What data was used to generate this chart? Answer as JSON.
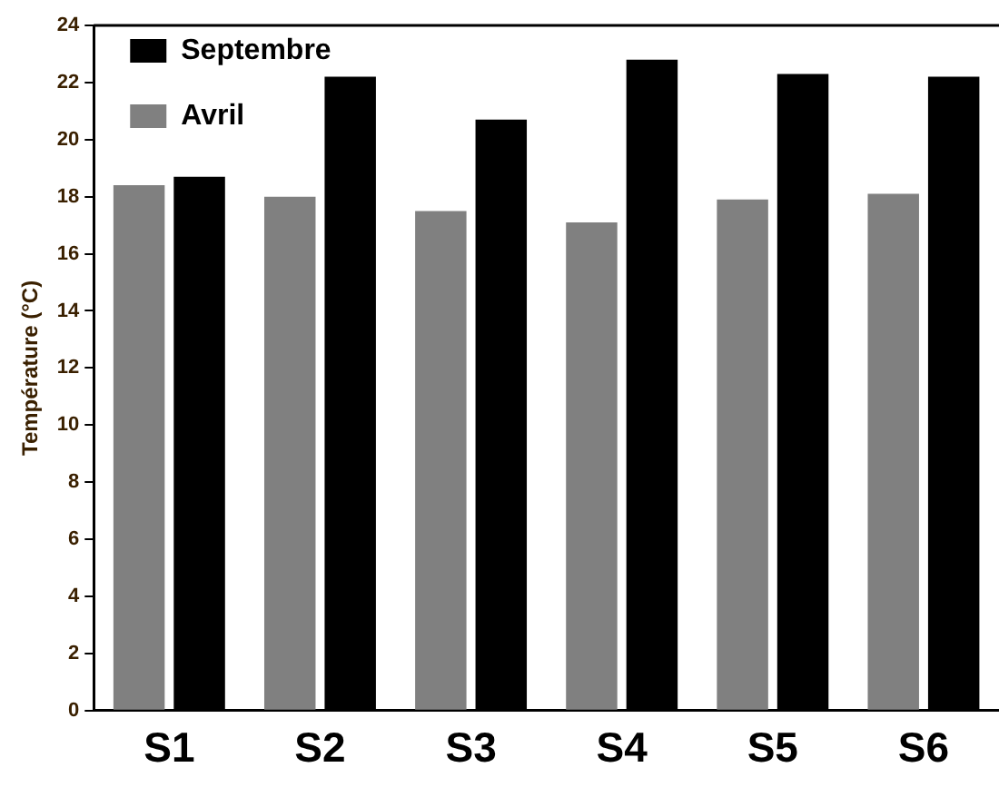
{
  "chart_data": {
    "type": "bar",
    "ylabel": "Température (°C)",
    "categories": [
      "S1",
      "S2",
      "S3",
      "S4",
      "S5",
      "S6"
    ],
    "series": [
      {
        "name": "Avril",
        "color": "#808080",
        "values": [
          18.4,
          18.0,
          17.5,
          17.1,
          17.9,
          18.1
        ]
      },
      {
        "name": "Septembre",
        "color": "#000000",
        "values": [
          18.7,
          22.2,
          20.7,
          22.8,
          22.3,
          22.2
        ]
      }
    ],
    "ylim": [
      0,
      24
    ],
    "yticks": [
      0,
      2,
      4,
      6,
      8,
      10,
      12,
      14,
      16,
      18,
      20,
      22,
      24
    ],
    "grid": false,
    "legend": "top left"
  }
}
